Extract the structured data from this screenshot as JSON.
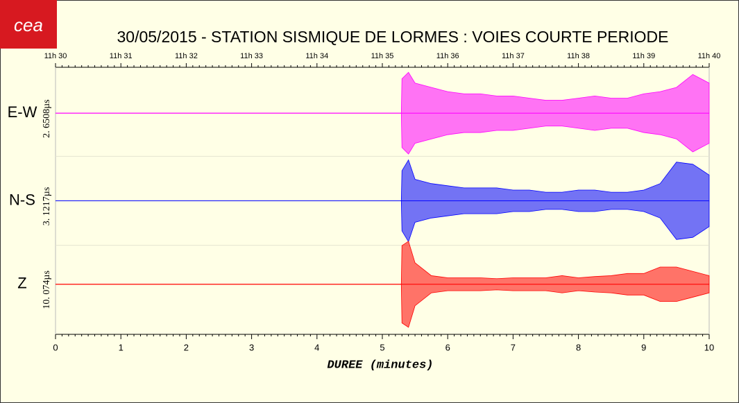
{
  "chart_data": {
    "type": "seismogram",
    "title": "30/05/2015  -  STATION SISMIQUE DE LORMES : VOIES COURTE PERIODE",
    "logo": "cea",
    "x_label": "DUREE (minutes)",
    "xlim": [
      0,
      10
    ],
    "xticks": [
      0,
      1,
      2,
      3,
      4,
      5,
      6,
      7,
      8,
      9,
      10
    ],
    "x2ticks": [
      {
        "value": 0,
        "label": "11h 30"
      },
      {
        "value": 1,
        "label": "11h 31"
      },
      {
        "value": 2,
        "label": "11h 32"
      },
      {
        "value": 3,
        "label": "11h 33"
      },
      {
        "value": 4,
        "label": "11h 34"
      },
      {
        "value": 5,
        "label": "11h 35"
      },
      {
        "value": 6,
        "label": "11h 36"
      },
      {
        "value": 7,
        "label": "11h 37"
      },
      {
        "value": 8,
        "label": "11h 38"
      },
      {
        "value": 9,
        "label": "11h 39"
      },
      {
        "value": 10,
        "label": "11h 40"
      }
    ],
    "x": [
      0,
      5.29,
      5.3,
      5.4,
      5.5,
      5.75,
      6,
      6.25,
      6.5,
      6.75,
      7,
      7.25,
      7.5,
      7.75,
      8,
      8.25,
      8.5,
      8.75,
      9,
      9.25,
      9.5,
      9.75,
      10
    ],
    "series": [
      {
        "name": "E-W",
        "scale": "2. 6508µs",
        "color": "#ff00ff",
        "values": [
          0,
          0,
          0.8,
          0.95,
          0.7,
          0.6,
          0.5,
          0.45,
          0.45,
          0.4,
          0.4,
          0.35,
          0.3,
          0.3,
          0.35,
          0.4,
          0.35,
          0.35,
          0.45,
          0.5,
          0.6,
          0.9,
          0.7
        ]
      },
      {
        "name": "N-S",
        "scale": "3. 1217µs",
        "color": "#0000ff",
        "values": [
          0,
          0,
          0.7,
          0.95,
          0.5,
          0.4,
          0.35,
          0.3,
          0.3,
          0.3,
          0.25,
          0.25,
          0.2,
          0.2,
          0.25,
          0.25,
          0.2,
          0.2,
          0.25,
          0.4,
          0.9,
          0.85,
          0.6
        ]
      },
      {
        "name": "Z",
        "scale": "10. 074µs",
        "color": "#ff0000",
        "values": [
          0,
          0,
          0.9,
          1.0,
          0.5,
          0.2,
          0.15,
          0.15,
          0.15,
          0.13,
          0.15,
          0.15,
          0.15,
          0.2,
          0.15,
          0.18,
          0.2,
          0.25,
          0.25,
          0.4,
          0.4,
          0.3,
          0.2
        ]
      }
    ]
  }
}
